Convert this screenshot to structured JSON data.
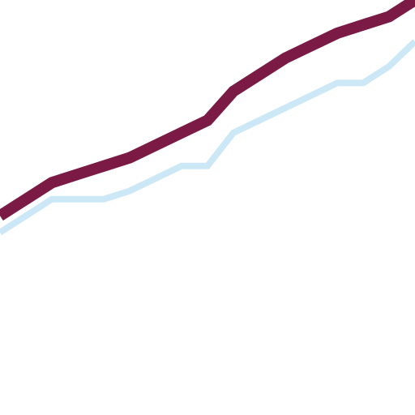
{
  "chart_data": {
    "type": "line",
    "x": [
      0,
      1,
      2,
      3,
      4,
      5,
      6,
      7,
      8,
      9,
      10,
      11,
      12,
      13,
      14,
      15,
      16
    ],
    "xlim": [
      0,
      16
    ],
    "ylim": [
      0,
      100
    ],
    "grid": false,
    "series": [
      {
        "color": "#7a1a45",
        "values": [
          48,
          52,
          56,
          58,
          60,
          62,
          65,
          68,
          71,
          78,
          82,
          86,
          89,
          92,
          94,
          96,
          100
        ]
      },
      {
        "color": "#cce8f6",
        "values": [
          44,
          48,
          52,
          52,
          52,
          54,
          57,
          60,
          60,
          68,
          71,
          74,
          77,
          80,
          80,
          84,
          90
        ]
      }
    ]
  }
}
